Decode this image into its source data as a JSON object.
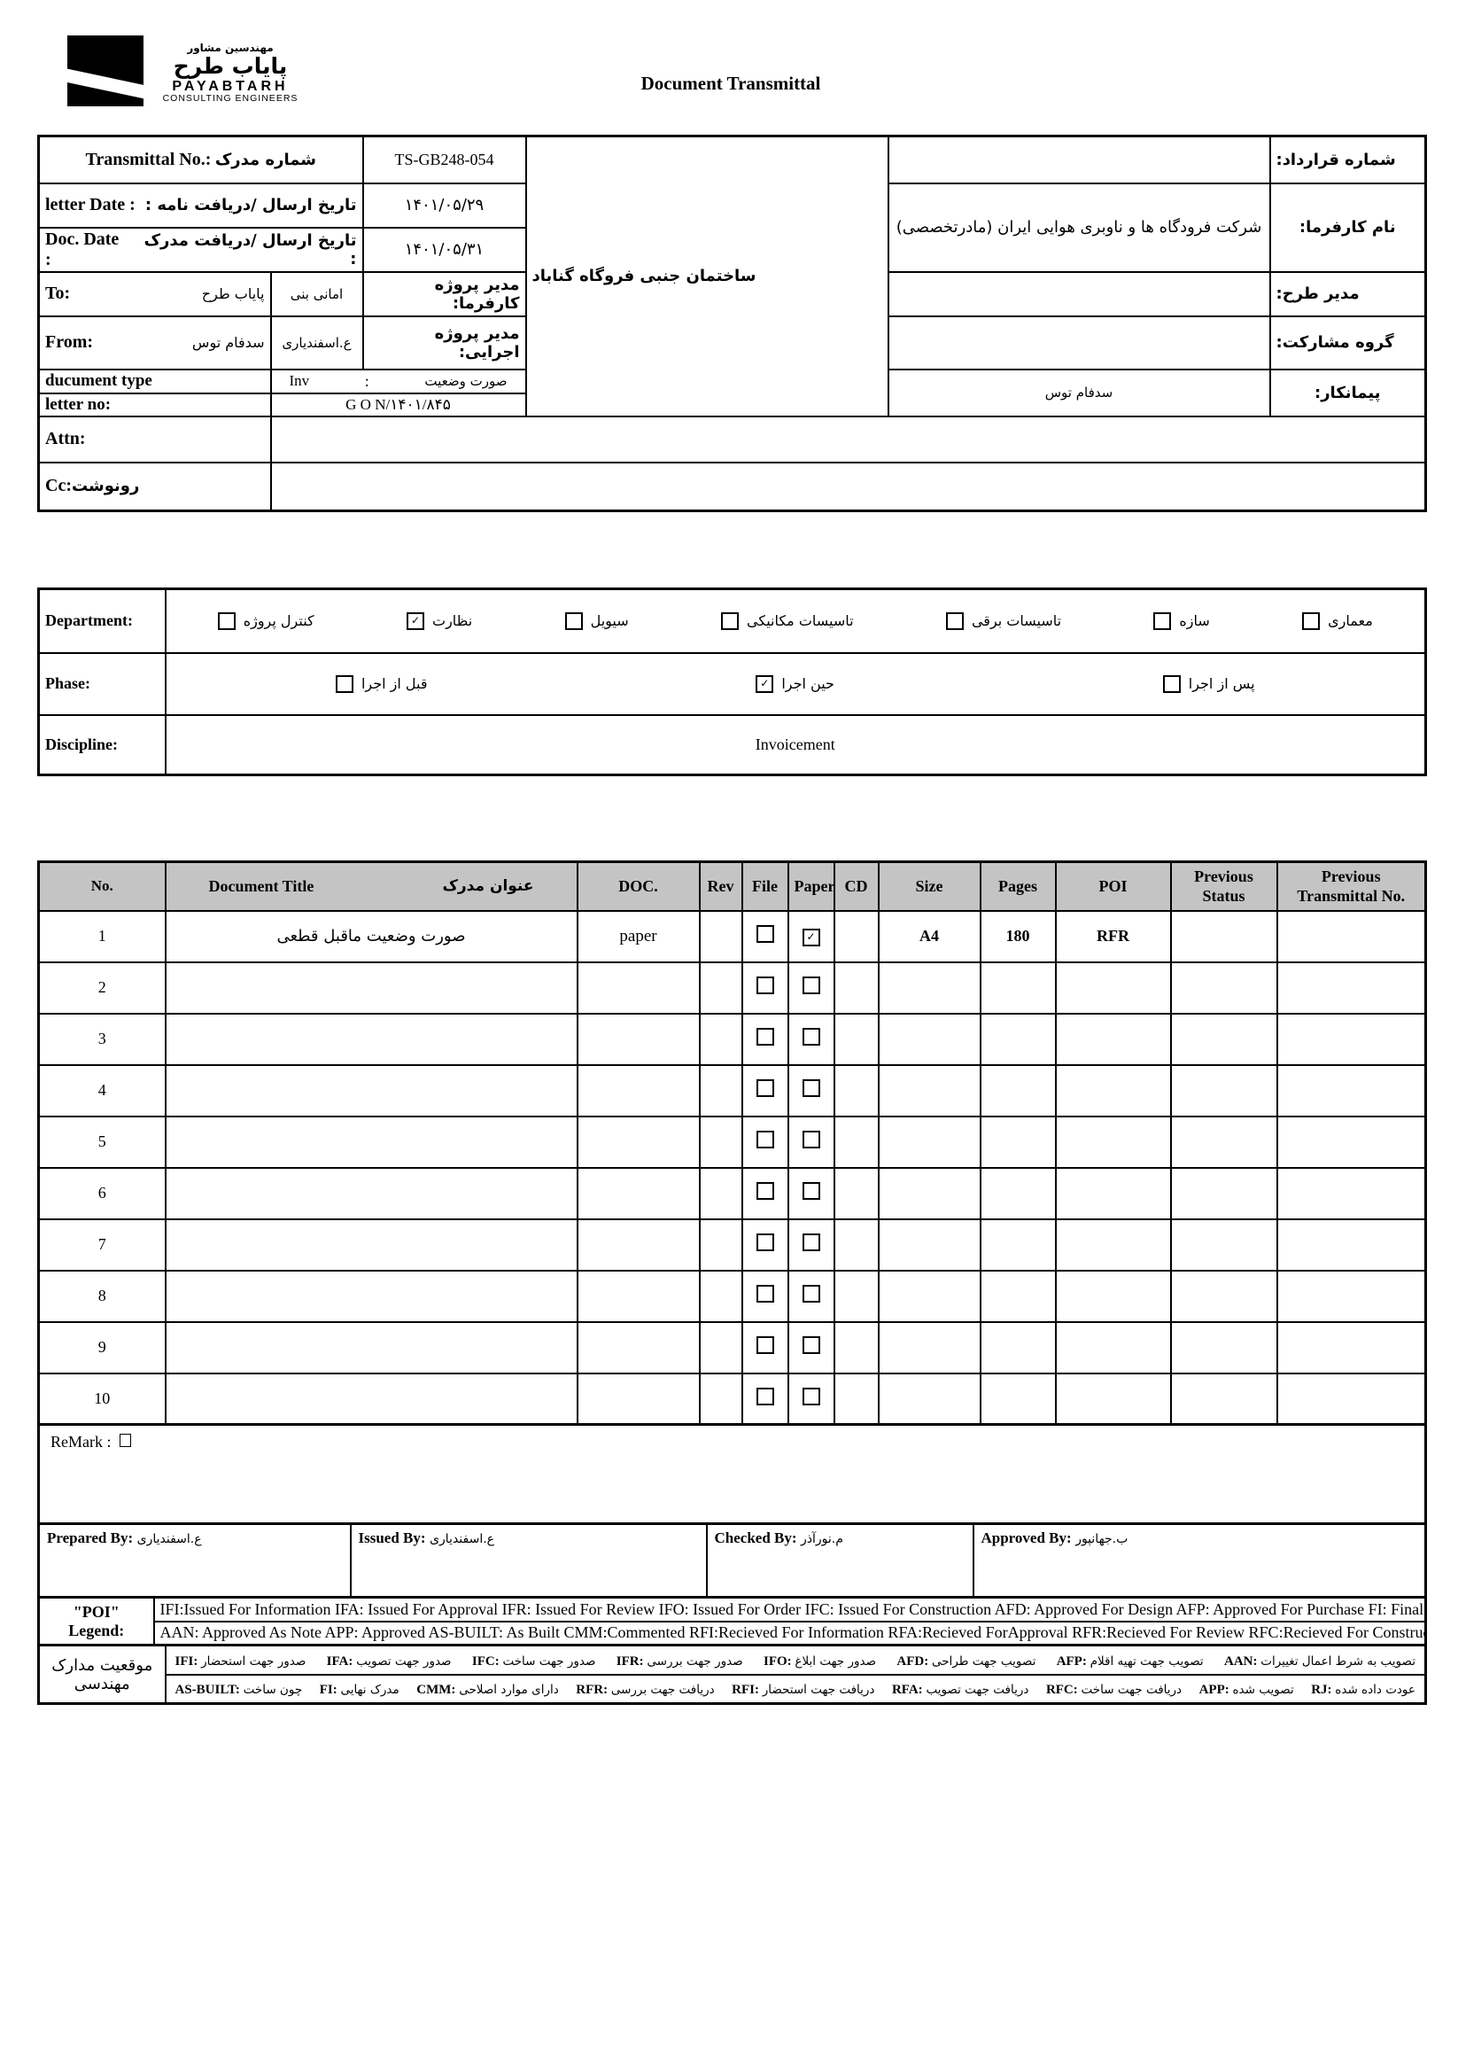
{
  "header": {
    "title": "Document Transmittal",
    "logo": {
      "fa_top": "مهندسین مشاور",
      "fa_name": "پایاب طرح",
      "en_name": "PAYABTARH",
      "en_sub": "CONSULTING ENGINEERS"
    }
  },
  "top": {
    "transmittal": {
      "en": "Transmittal No.:",
      "fa": "شماره مدرک",
      "value": "TS-GB248-054"
    },
    "letter_date": {
      "en": "letter Date  :",
      "fa": "تاریخ ارسال  /دریافت نامه  :",
      "value": "۱۴۰۱/۰۵/۲۹"
    },
    "doc_date": {
      "en": "Doc. Date :",
      "fa": "تاریخ ارسال /دریافت مدرک  :",
      "value": "۱۴۰۱/۰۵/۳۱"
    },
    "to": {
      "en": "To:",
      "fa": "پایاب طرح",
      "person": "امانی بنی",
      "role": "مدیر پروژه کارفرما:"
    },
    "from": {
      "en": "From:",
      "fa": "سدفام توس",
      "person": "ع.اسفندیاری",
      "role": "مدیر پروژه اجرایی:"
    },
    "doc_type": {
      "en": "ducument type",
      "value_en": "Inv",
      "sep": ":",
      "value_fa": "صورت وضعیت"
    },
    "letter_no": {
      "en": "letter no:",
      "value": "G O N/۱۴۰۱/۸۴۵"
    },
    "attn": {
      "en": "Attn:"
    },
    "cc": {
      "en": "Cc:",
      "fa": "رونوشت"
    },
    "project_name": "ساختمان جنبی فروگاه گناباد",
    "contract": {
      "label": "شماره قرارداد:",
      "value": ""
    },
    "client": {
      "label": "نام کارفرما:",
      "value": "شرکت فرودگاه ها و ناوبری هوایی ایران (مادرتخصصی)"
    },
    "design_manager": {
      "label": "مدیر طرح:",
      "value": ""
    },
    "partnership_group": {
      "label": "گروه مشارکت:",
      "value": ""
    },
    "contractor": {
      "label": "پیمانکار:",
      "value": "سدفام توس"
    }
  },
  "classification": {
    "department_label": "Department:",
    "departments": [
      {
        "label": "معماری",
        "checked": false
      },
      {
        "label": "سازه",
        "checked": false
      },
      {
        "label": "تاسیسات برقی",
        "checked": false
      },
      {
        "label": "تاسیسات مکانیکی",
        "checked": false
      },
      {
        "label": "سیویل",
        "checked": false
      },
      {
        "label": "نظارت",
        "checked": true
      },
      {
        "label": "کنترل پروژه",
        "checked": false
      }
    ],
    "phase_label": "Phase:",
    "phases": [
      {
        "label": "پس از اجرا",
        "checked": false
      },
      {
        "label": "حین اجرا",
        "checked": true
      },
      {
        "label": "قبل از اجرا",
        "checked": false
      }
    ],
    "discipline_label": "Discipline:",
    "discipline_value": "Invoicement"
  },
  "doc_table": {
    "headers": {
      "no": "No.",
      "title_en": "Document Title",
      "title_fa": "عنوان مدرک",
      "doc": "DOC.",
      "rev": "Rev",
      "file": "File",
      "paper": "Paper",
      "cd": "CD",
      "size": "Size",
      "pages": "Pages",
      "poi": "POI",
      "prev_status": "Previous Status",
      "prev_transmittal": "Previous Transmittal No."
    },
    "rows": [
      {
        "no": "1",
        "title": "صورت وضعیت ماقبل قطعی",
        "doc": "paper",
        "rev": "",
        "file": false,
        "paper": true,
        "cd": "",
        "size": "A4",
        "pages": "180",
        "poi": "RFR",
        "prev_status": "",
        "prev_transmittal": ""
      },
      {
        "no": "2",
        "title": "",
        "doc": "",
        "rev": "",
        "file": false,
        "paper": false,
        "cd": "",
        "size": "",
        "pages": "",
        "poi": "",
        "prev_status": "",
        "prev_transmittal": ""
      },
      {
        "no": "3",
        "title": "",
        "doc": "",
        "rev": "",
        "file": false,
        "paper": false,
        "cd": "",
        "size": "",
        "pages": "",
        "poi": "",
        "prev_status": "",
        "prev_transmittal": ""
      },
      {
        "no": "4",
        "title": "",
        "doc": "",
        "rev": "",
        "file": false,
        "paper": false,
        "cd": "",
        "size": "",
        "pages": "",
        "poi": "",
        "prev_status": "",
        "prev_transmittal": ""
      },
      {
        "no": "5",
        "title": "",
        "doc": "",
        "rev": "",
        "file": false,
        "paper": false,
        "cd": "",
        "size": "",
        "pages": "",
        "poi": "",
        "prev_status": "",
        "prev_transmittal": ""
      },
      {
        "no": "6",
        "title": "",
        "doc": "",
        "rev": "",
        "file": false,
        "paper": false,
        "cd": "",
        "size": "",
        "pages": "",
        "poi": "",
        "prev_status": "",
        "prev_transmittal": ""
      },
      {
        "no": "7",
        "title": "",
        "doc": "",
        "rev": "",
        "file": false,
        "paper": false,
        "cd": "",
        "size": "",
        "pages": "",
        "poi": "",
        "prev_status": "",
        "prev_transmittal": ""
      },
      {
        "no": "8",
        "title": "",
        "doc": "",
        "rev": "",
        "file": false,
        "paper": false,
        "cd": "",
        "size": "",
        "pages": "",
        "poi": "",
        "prev_status": "",
        "prev_transmittal": ""
      },
      {
        "no": "9",
        "title": "",
        "doc": "",
        "rev": "",
        "file": false,
        "paper": false,
        "cd": "",
        "size": "",
        "pages": "",
        "poi": "",
        "prev_status": "",
        "prev_transmittal": ""
      },
      {
        "no": "10",
        "title": "",
        "doc": "",
        "rev": "",
        "file": false,
        "paper": false,
        "cd": "",
        "size": "",
        "pages": "",
        "poi": "",
        "prev_status": "",
        "prev_transmittal": ""
      }
    ]
  },
  "remark": {
    "label": "ReMark :"
  },
  "signatures": {
    "prepared_label": "Prepared By:",
    "prepared_value": "ع.اسفندیاری",
    "issued_label": "Issued By:",
    "issued_value": "ع.اسفندیاری",
    "checked_label": "Checked By:",
    "checked_value": "م.نورآذر",
    "approved_label": "Approved By:",
    "approved_value": "ب.جهانپور"
  },
  "poi_legend": {
    "label": "\"POI\" Legend:",
    "line1": "IFI:Issued For Information  IFA: Issued For Approval  IFR: Issued For Review   IFO: Issued For Order  IFC: Issued For Construction AFD: Approved For Design AFP: Approved For Purchase  FI: Final Issue  IFO: Issued For Tender",
    "line2": "AAN: Approved As Note  APP: Approved  AS-BUILT: As Built CMM:Commented  RFI:Recieved For Information   RFA:Recieved ForApproval   RFR:Recieved For Review  RFC:Recieved For Construction  RJ:Rejected"
  },
  "fa_legend": {
    "label": "موقعیت مدارک مهندسی",
    "row1": [
      {
        "code": "IFI:",
        "text": "صدور جهت استحضار"
      },
      {
        "code": "IFA:",
        "text": "صدور جهت تصویب"
      },
      {
        "code": "IFC:",
        "text": "صدور جهت ساخت"
      },
      {
        "code": "IFR:",
        "text": "صدور جهت بررسی"
      },
      {
        "code": "IFO:",
        "text": "صدور جهت ابلاغ"
      },
      {
        "code": "AFD:",
        "text": "تصویب جهت طراحی"
      },
      {
        "code": "AFP:",
        "text": "تصویب جهت تهیه اقلام"
      },
      {
        "code": "AAN:",
        "text": "تصویب به شرط اعمال تغییرات"
      }
    ],
    "row2": [
      {
        "code": "AS-BUILT:",
        "text": "چون ساخت"
      },
      {
        "code": "FI:",
        "text": "مدرک نهایی"
      },
      {
        "code": "CMM:",
        "text": "دارای موارد اصلاحی"
      },
      {
        "code": "RFR:",
        "text": "دریافت جهت بررسی"
      },
      {
        "code": "RFI:",
        "text": "دریافت جهت استحضار"
      },
      {
        "code": "RFA:",
        "text": "دریافت جهت تصویب"
      },
      {
        "code": "RFC:",
        "text": "دریافت جهت ساخت"
      },
      {
        "code": "APP:",
        "text": "تصویب شده"
      },
      {
        "code": "RJ:",
        "text": "عودت داده شده"
      }
    ]
  }
}
